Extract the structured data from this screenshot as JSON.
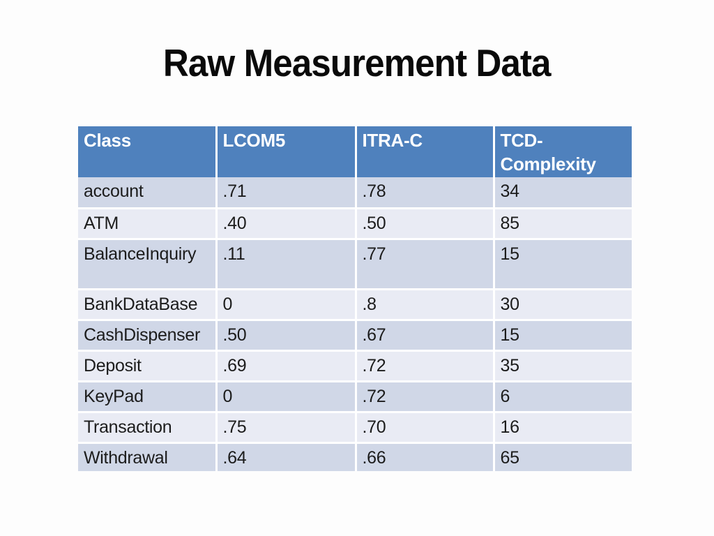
{
  "slide": {
    "title": "Raw Measurement Data",
    "background_color": "#fdfdfd"
  },
  "table": {
    "headers": [
      "Class",
      "LCOM5",
      "ITRA-C",
      "TCD-Complexity"
    ],
    "rows": [
      [
        "account",
        ".71",
        ".78",
        "34"
      ],
      [
        "ATM",
        ".40",
        ".50",
        "85"
      ],
      [
        "BalanceInquiry",
        ".11",
        ".77",
        "15"
      ],
      [
        "BankDataBase",
        "0",
        ".8",
        "30"
      ],
      [
        "CashDispenser",
        ".50",
        ".67",
        "15"
      ],
      [
        "Deposit",
        ".69",
        ".72",
        "35"
      ],
      [
        "KeyPad",
        "0",
        ".72",
        "6"
      ],
      [
        "Transaction",
        ".75",
        ".70",
        "16"
      ],
      [
        "Withdrawal",
        ".64",
        ".66",
        "65"
      ]
    ],
    "colors": {
      "header_bg": "#4f81bd",
      "header_text": "#ffffff",
      "band_dark": "#d0d7e7",
      "band_light": "#e9ebf4",
      "cell_text": "#1c1c1c",
      "divider": "#ffffff"
    }
  }
}
